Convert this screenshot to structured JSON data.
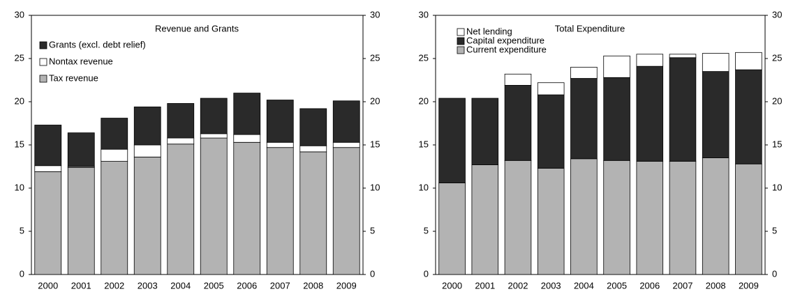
{
  "chart_data": [
    {
      "type": "stacked-bar",
      "title": "Revenue and Grants",
      "categories": [
        "2000",
        "2001",
        "2002",
        "2003",
        "2004",
        "2005",
        "2006",
        "2007",
        "2008",
        "2009"
      ],
      "series": [
        {
          "name": "Tax revenue",
          "color": "#b3b3b3",
          "values": [
            11.9,
            12.4,
            13.1,
            13.6,
            15.1,
            15.8,
            15.3,
            14.7,
            14.2,
            14.7
          ]
        },
        {
          "name": "Nontax revenue",
          "color": "#ffffff",
          "values": [
            0.7,
            0.1,
            1.4,
            1.4,
            0.7,
            0.5,
            0.9,
            0.6,
            0.7,
            0.6
          ]
        },
        {
          "name": "Grants (excl. debt relief)",
          "color": "#2a2a2a",
          "values": [
            4.7,
            3.9,
            3.6,
            4.4,
            4.0,
            4.1,
            4.8,
            4.9,
            4.3,
            4.8
          ]
        }
      ],
      "ylim": [
        0,
        30
      ],
      "yticks": [
        0,
        5,
        10,
        15,
        20,
        25,
        30
      ],
      "y2lim": [
        0,
        30
      ],
      "y2ticks": [
        0,
        5,
        10,
        15,
        20,
        25,
        30
      ],
      "legend": "upper-left"
    },
    {
      "type": "stacked-bar",
      "title": "Total Expenditure",
      "categories": [
        "2000",
        "2001",
        "2002",
        "2003",
        "2004",
        "2005",
        "2006",
        "2007",
        "2008",
        "2009"
      ],
      "series": [
        {
          "name": "Current expenditure",
          "color": "#b3b3b3",
          "values": [
            10.6,
            12.7,
            13.2,
            12.3,
            13.4,
            13.2,
            13.1,
            13.1,
            13.5,
            12.8
          ]
        },
        {
          "name": "Capital expenditure",
          "color": "#2a2a2a",
          "values": [
            9.8,
            7.7,
            8.7,
            8.5,
            9.3,
            9.6,
            11.0,
            12.0,
            10.0,
            10.9
          ]
        },
        {
          "name": "Net lending",
          "color": "#ffffff",
          "values": [
            0,
            0,
            1.3,
            1.4,
            1.3,
            2.5,
            1.4,
            0.4,
            2.1,
            2.0
          ]
        }
      ],
      "ylim": [
        0,
        30
      ],
      "yticks": [
        0,
        5,
        10,
        15,
        20,
        25,
        30
      ],
      "y2lim": [
        0,
        30
      ],
      "y2ticks": [
        0,
        5,
        10,
        15,
        20,
        25,
        30
      ],
      "legend": "upper-left"
    }
  ]
}
